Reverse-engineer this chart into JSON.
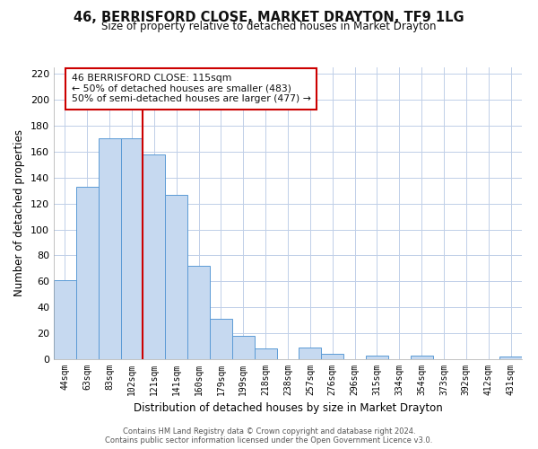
{
  "title": "46, BERRISFORD CLOSE, MARKET DRAYTON, TF9 1LG",
  "subtitle": "Size of property relative to detached houses in Market Drayton",
  "xlabel": "Distribution of detached houses by size in Market Drayton",
  "ylabel": "Number of detached properties",
  "bar_labels": [
    "44sqm",
    "63sqm",
    "83sqm",
    "102sqm",
    "121sqm",
    "141sqm",
    "160sqm",
    "179sqm",
    "199sqm",
    "218sqm",
    "238sqm",
    "257sqm",
    "276sqm",
    "296sqm",
    "315sqm",
    "334sqm",
    "354sqm",
    "373sqm",
    "392sqm",
    "412sqm",
    "431sqm"
  ],
  "bar_values": [
    61,
    133,
    170,
    170,
    158,
    127,
    72,
    31,
    18,
    8,
    0,
    9,
    4,
    0,
    3,
    0,
    3,
    0,
    0,
    0,
    2
  ],
  "bar_color": "#c6d9f0",
  "bar_edge_color": "#5b9bd5",
  "ylim": [
    0,
    225
  ],
  "yticks": [
    0,
    20,
    40,
    60,
    80,
    100,
    120,
    140,
    160,
    180,
    200,
    220
  ],
  "vline_color": "#cc0000",
  "vline_index": 4,
  "annotation_title": "46 BERRISFORD CLOSE: 115sqm",
  "annotation_line1": "← 50% of detached houses are smaller (483)",
  "annotation_line2": "50% of semi-detached houses are larger (477) →",
  "annotation_box_color": "#ffffff",
  "annotation_box_edge": "#cc0000",
  "footer1": "Contains HM Land Registry data © Crown copyright and database right 2024.",
  "footer2": "Contains public sector information licensed under the Open Government Licence v3.0.",
  "background_color": "#ffffff",
  "grid_color": "#c0cfe8",
  "title_fontsize": 10.5,
  "subtitle_fontsize": 8.5
}
